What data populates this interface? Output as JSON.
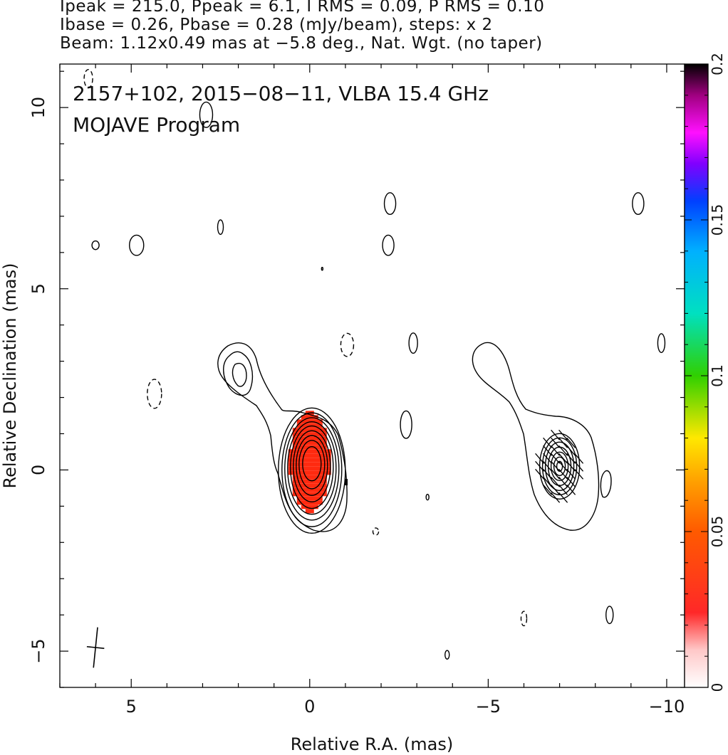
{
  "header": {
    "line1": "Ipeak = 215.0, Ppeak = 6.1, I RMS = 0.09, P RMS = 0.10",
    "line2": "Ibase = 0.26, Pbase = 0.28 (mJy/beam), steps: x 2",
    "line3": "Beam: 1.12x0.49 mas at −5.8 deg., Nat. Wgt. (no taper)"
  },
  "chart_data": {
    "type": "contour",
    "title_line1": "2157+102, 2015−08−11, VLBA 15.4 GHz",
    "title_line2": "MOJAVE Program",
    "xlabel": "Relative R.A. (mas)",
    "ylabel": "Relative Declination (mas)",
    "xlim": [
      7,
      -10.5
    ],
    "ylim": [
      -6,
      11.2
    ],
    "x_ticks": [
      {
        "v": 5,
        "label": "5"
      },
      {
        "v": 0,
        "label": "0"
      },
      {
        "v": -5,
        "label": "−5"
      },
      {
        "v": -10,
        "label": "−10"
      }
    ],
    "y_ticks": [
      {
        "v": 10,
        "label": "10"
      },
      {
        "v": 5,
        "label": "5"
      },
      {
        "v": 0,
        "label": "0"
      },
      {
        "v": -5,
        "label": "−5"
      }
    ],
    "colorbar": {
      "range": [
        0,
        0.2
      ],
      "ticks": [
        {
          "v": 0,
          "label": "0"
        },
        {
          "v": 0.05,
          "label": "0.05"
        },
        {
          "v": 0.1,
          "label": "0.1"
        },
        {
          "v": 0.15,
          "label": "0.15"
        },
        {
          "v": 0.2,
          "label": "0.2"
        }
      ]
    },
    "core": {
      "x": 0,
      "y": 0.1
    },
    "core_contour_levels": 9,
    "core_fill_color": "#ff2a10",
    "jet_knot": {
      "x": 2.0,
      "y": 2.65
    },
    "polarization_center": {
      "x": -7.0,
      "y": 0.1
    },
    "beam": {
      "x": 6.0,
      "y": -4.9,
      "major": 1.12,
      "minor": 0.49,
      "pa_deg": -5.8
    },
    "noise_blobs": [
      {
        "x": 6.2,
        "y": 10.8,
        "rx": 0.12,
        "ry": 0.25,
        "dashed": true
      },
      {
        "x": 2.9,
        "y": 9.8,
        "rx": 0.18,
        "ry": 0.35,
        "dashed": false
      },
      {
        "x": 6.0,
        "y": 6.2,
        "rx": 0.1,
        "ry": 0.12,
        "dashed": false
      },
      {
        "x": 4.85,
        "y": 6.2,
        "rx": 0.2,
        "ry": 0.28,
        "dashed": false
      },
      {
        "x": 2.5,
        "y": 6.7,
        "rx": 0.08,
        "ry": 0.2,
        "dashed": false
      },
      {
        "x": -2.25,
        "y": 7.35,
        "rx": 0.16,
        "ry": 0.3,
        "dashed": false
      },
      {
        "x": -2.2,
        "y": 6.2,
        "rx": 0.16,
        "ry": 0.28,
        "dashed": false
      },
      {
        "x": -9.2,
        "y": 7.35,
        "rx": 0.16,
        "ry": 0.3,
        "dashed": false
      },
      {
        "x": 4.35,
        "y": 2.1,
        "rx": 0.2,
        "ry": 0.4,
        "dashed": true
      },
      {
        "x": -1.05,
        "y": 3.45,
        "rx": 0.18,
        "ry": 0.32,
        "dashed": true
      },
      {
        "x": -2.9,
        "y": 3.5,
        "rx": 0.12,
        "ry": 0.28,
        "dashed": false
      },
      {
        "x": -9.85,
        "y": 3.5,
        "rx": 0.1,
        "ry": 0.26,
        "dashed": false
      },
      {
        "x": -2.7,
        "y": 1.25,
        "rx": 0.16,
        "ry": 0.38,
        "dashed": false
      },
      {
        "x": -3.3,
        "y": -0.75,
        "rx": 0.04,
        "ry": 0.08,
        "dashed": false
      },
      {
        "x": -1.85,
        "y": -1.7,
        "rx": 0.08,
        "ry": 0.1,
        "dashed": true
      },
      {
        "x": -6.0,
        "y": -4.1,
        "rx": 0.08,
        "ry": 0.2,
        "dashed": true
      },
      {
        "x": -8.4,
        "y": -4.0,
        "rx": 0.1,
        "ry": 0.24,
        "dashed": false
      },
      {
        "x": -3.85,
        "y": -5.1,
        "rx": 0.06,
        "ry": 0.12,
        "dashed": false
      },
      {
        "x": -0.35,
        "y": 5.55,
        "rx": 0.02,
        "ry": 0.04,
        "dashed": false
      }
    ]
  }
}
